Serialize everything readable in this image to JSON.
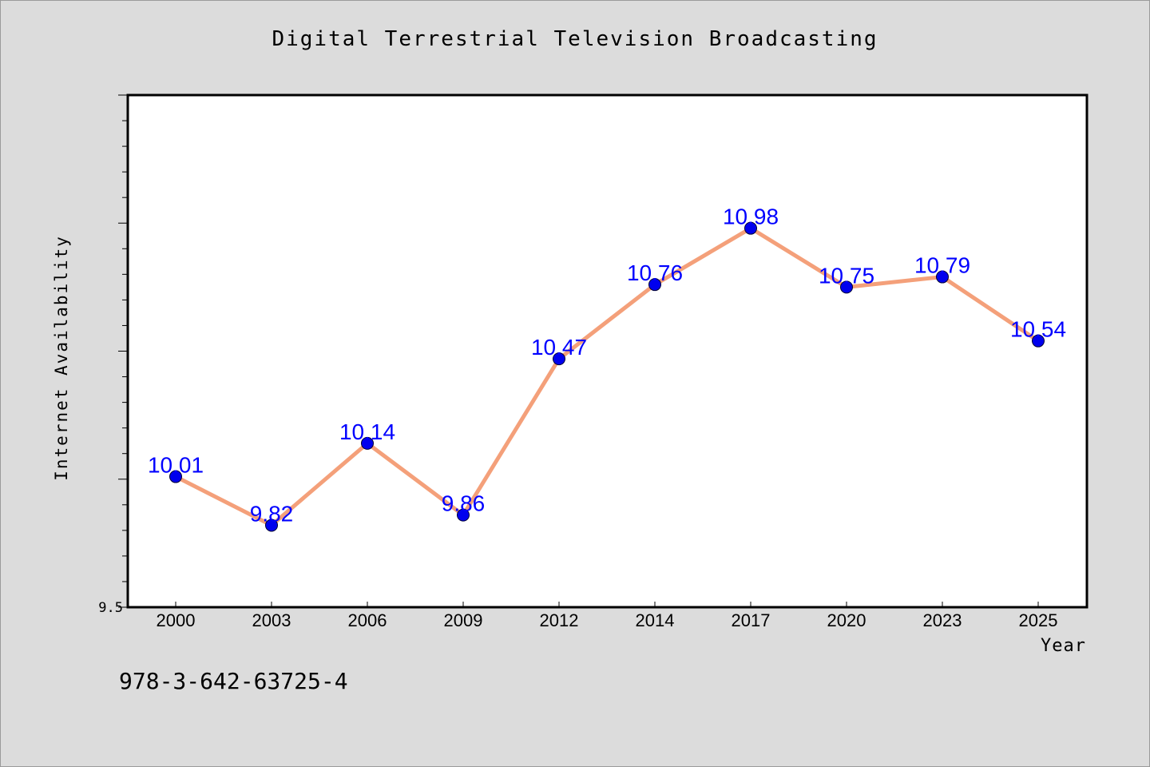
{
  "chart_data": {
    "type": "line",
    "title": "Digital Terrestrial Television Broadcasting",
    "xlabel": "Year",
    "ylabel": "Internet Availability",
    "categories": [
      "2000",
      "2003",
      "2006",
      "2009",
      "2012",
      "2014",
      "2017",
      "2020",
      "2023",
      "2025"
    ],
    "series": [
      {
        "values": [
          10.01,
          9.82,
          10.14,
          9.86,
          10.47,
          10.76,
          10.98,
          10.75,
          10.79,
          10.54
        ]
      }
    ],
    "value_labels": [
      "10.01",
      "9.82",
      "10.14",
      "9.86",
      "10.47",
      "10.76",
      "10.98",
      "10.75",
      "10.79",
      "10.54"
    ],
    "ylim": [
      9.5,
      11.5
    ],
    "y_tick_labels": [
      "9.5"
    ],
    "grid": false,
    "legend": "none",
    "colors": {
      "line": "#f4a07a",
      "marker": "#0000ee",
      "value_label": "#0000ff",
      "plot_background": "#ffffff",
      "page_background": "#dcdcdc"
    }
  },
  "footer": {
    "isbn": "978-3-642-63725-4"
  }
}
